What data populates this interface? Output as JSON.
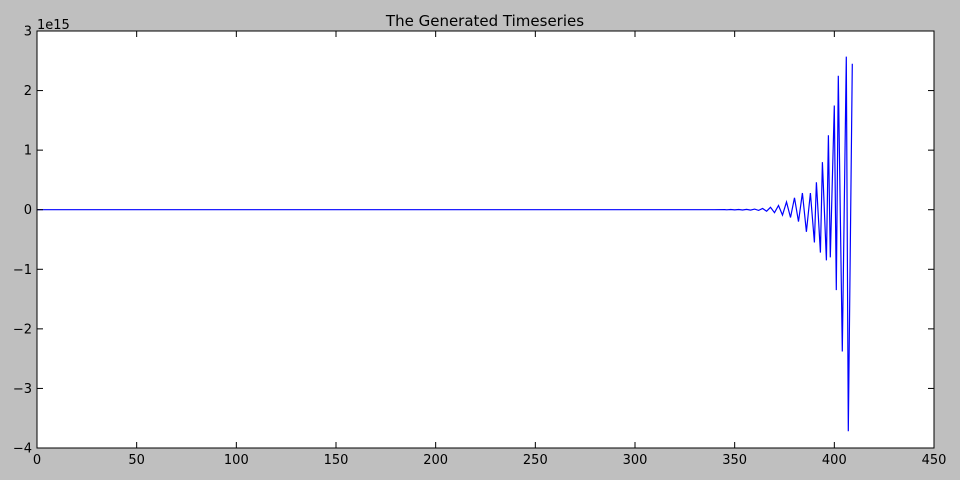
{
  "chart_data": {
    "type": "line",
    "title": "The Generated Timeseries",
    "xlabel": "",
    "ylabel": "",
    "y_offset_text": "1e15",
    "xlim": [
      0,
      450
    ],
    "ylim": [
      -4,
      3
    ],
    "y_units_multiplier": 1000000000000000.0,
    "x_ticks": [
      0,
      50,
      100,
      150,
      200,
      250,
      300,
      350,
      400,
      450
    ],
    "y_ticks": [
      -4,
      -3,
      -2,
      -1,
      0,
      1,
      2,
      3
    ],
    "x_tick_labels": [
      "0",
      "50",
      "100",
      "150",
      "200",
      "250",
      "300",
      "350",
      "400",
      "450"
    ],
    "y_tick_labels": [
      "−4",
      "−3",
      "−2",
      "−1",
      "0",
      "1",
      "2",
      "3"
    ],
    "grid": false,
    "series": [
      {
        "color": "#0000ff",
        "points": [
          [
            0,
            0
          ],
          [
            100,
            0
          ],
          [
            200,
            0
          ],
          [
            300,
            0
          ],
          [
            340,
            0
          ],
          [
            345,
            0.002
          ],
          [
            346,
            -0.002
          ],
          [
            348,
            0.003
          ],
          [
            350,
            -0.003
          ],
          [
            352,
            0.004
          ],
          [
            354,
            -0.004
          ],
          [
            356,
            0.006
          ],
          [
            358,
            -0.006
          ],
          [
            360,
            0.01
          ],
          [
            362,
            -0.012
          ],
          [
            364,
            0.02
          ],
          [
            366,
            -0.025
          ],
          [
            368,
            0.04
          ],
          [
            370,
            -0.05
          ],
          [
            372,
            0.07
          ],
          [
            374,
            -0.09
          ],
          [
            376,
            0.13
          ],
          [
            378,
            -0.13
          ],
          [
            380,
            0.2
          ],
          [
            382,
            -0.2
          ],
          [
            384,
            0.28
          ],
          [
            386,
            -0.37
          ],
          [
            388,
            0.28
          ],
          [
            390,
            -0.55
          ],
          [
            391,
            0.46
          ],
          [
            393,
            -0.72
          ],
          [
            394,
            0.8
          ],
          [
            396,
            -0.85
          ],
          [
            397,
            1.25
          ],
          [
            398,
            -0.8
          ],
          [
            400,
            1.75
          ],
          [
            401,
            -1.35
          ],
          [
            402,
            2.25
          ],
          [
            404,
            -2.38
          ],
          [
            406,
            2.57
          ],
          [
            407,
            -3.72
          ],
          [
            409,
            2.45
          ]
        ]
      }
    ]
  }
}
